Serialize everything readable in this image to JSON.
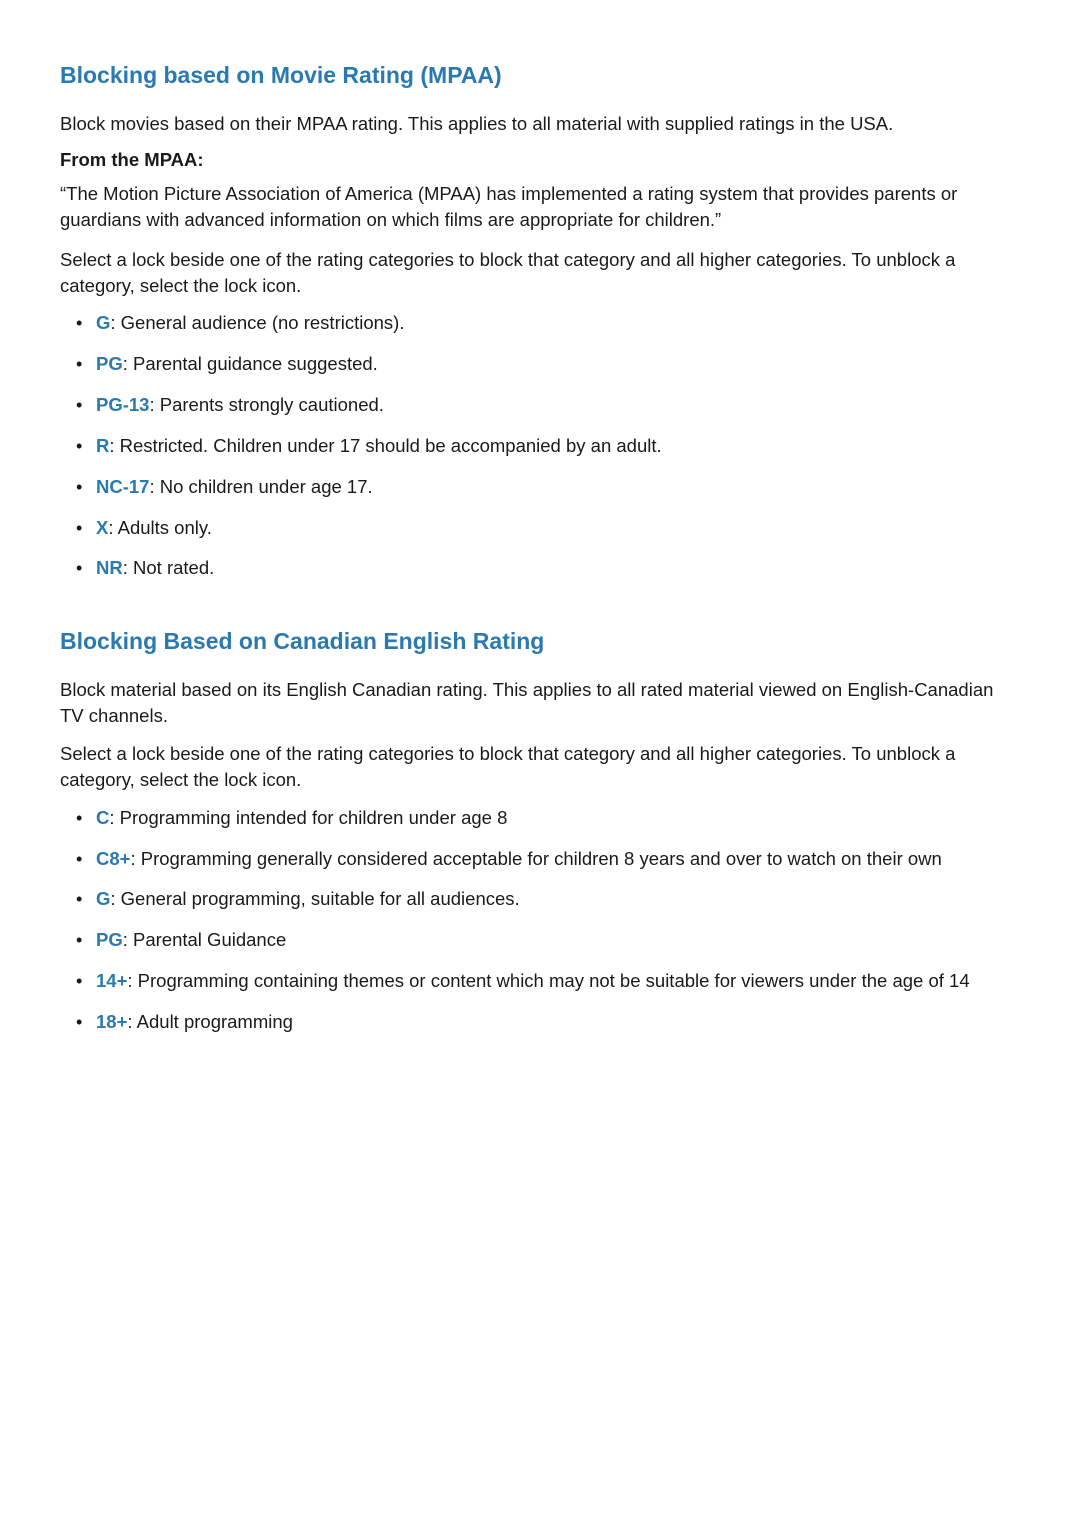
{
  "colors": {
    "heading": "#2a7ab0",
    "code": "#2a7ab0",
    "body_text": "#1a1a1a",
    "background": "#ffffff"
  },
  "typography": {
    "heading_fontsize": 23,
    "body_fontsize": 18.5,
    "subhead_fontsize": 18.5,
    "heading_weight": 600,
    "code_weight": 600,
    "subhead_weight": 700
  },
  "sections": [
    {
      "heading": "Blocking based on Movie Rating (MPAA)",
      "paragraphs": [
        "Block movies based on their MPAA rating. This applies to all material with supplied ratings in the USA."
      ],
      "subhead": "From the MPAA:",
      "quote": "“The Motion Picture Association of America (MPAA) has implemented a rating system that provides parents or guardians with advanced information on which films are appropriate for children.”",
      "paragraphs_after": [
        "Select a lock beside one of the rating categories to block that category and all higher categories. To unblock a category, select the lock icon."
      ],
      "items": [
        {
          "code": "G",
          "desc": ": General audience (no restrictions)."
        },
        {
          "code": "PG",
          "desc": ": Parental guidance suggested."
        },
        {
          "code": "PG-13",
          "desc": ": Parents strongly cautioned."
        },
        {
          "code": "R",
          "desc": ": Restricted. Children under 17 should be accompanied by an adult."
        },
        {
          "code": "NC-17",
          "desc": ": No children under age 17."
        },
        {
          "code": "X",
          "desc": ": Adults only."
        },
        {
          "code": "NR",
          "desc": ": Not rated."
        }
      ]
    },
    {
      "heading": "Blocking Based on Canadian English Rating",
      "paragraphs": [
        "Block material based on its English Canadian rating. This applies to all rated material viewed on English-Canadian TV channels.",
        "Select a lock beside one of the rating categories to block that category and all higher categories. To unblock a category, select the lock icon."
      ],
      "items": [
        {
          "code": "C",
          "desc": ": Programming intended for children under age 8"
        },
        {
          "code": "C8+",
          "desc": ": Programming generally considered acceptable for children 8 years and over to watch on their own"
        },
        {
          "code": "G",
          "desc": ": General programming, suitable for all audiences."
        },
        {
          "code": "PG",
          "desc": ": Parental Guidance"
        },
        {
          "code": "14+",
          "desc": ": Programming containing themes or content which may not be suitable for viewers under the age of 14"
        },
        {
          "code": "18+",
          "desc": ": Adult programming"
        }
      ]
    }
  ]
}
